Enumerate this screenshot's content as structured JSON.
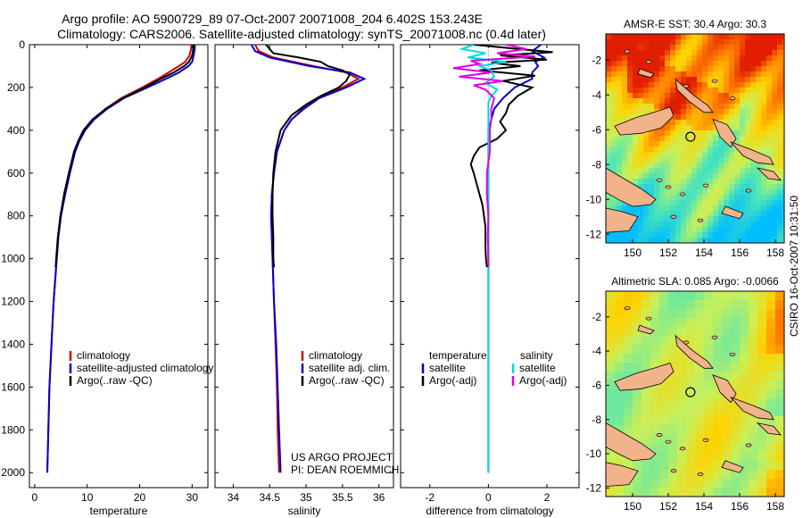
{
  "header": {
    "line1": "Argo profile: AO 5900729_89 07-Oct-2007 20071008_204 6.402S 153.243E",
    "line2": "Climatology: CARS2006. Satellite-adjusted climatology: synTS_20071008.nc (0.4d later)"
  },
  "credit": "CSIRO 16-Oct-2007 10:31:50",
  "chart_data": [
    {
      "type": "line",
      "xlabel": "temperature",
      "ylabel": "",
      "xlim": [
        -1,
        33
      ],
      "ylim": [
        2070,
        0
      ],
      "xticks": [
        0,
        10,
        20,
        30
      ],
      "yticks": [
        0,
        200,
        400,
        600,
        800,
        1000,
        1200,
        1400,
        1600,
        1800,
        2000
      ],
      "legend": [
        "climatology",
        "satellite-adjusted climatology",
        "Argo(..raw -QC)"
      ],
      "series": [
        {
          "name": "climatology",
          "color": "#d40000",
          "points": [
            [
              0,
              29.8
            ],
            [
              20,
              29.8
            ],
            [
              50,
              29.5
            ],
            [
              80,
              28.7
            ],
            [
              100,
              27.5
            ],
            [
              130,
              25.5
            ],
            [
              160,
              23.5
            ],
            [
              200,
              20.5
            ],
            [
              250,
              16.5
            ],
            [
              300,
              13.5
            ],
            [
              350,
              11.2
            ],
            [
              400,
              9.6
            ],
            [
              450,
              8.5
            ],
            [
              500,
              7.7
            ],
            [
              600,
              6.7
            ],
            [
              700,
              5.8
            ],
            [
              800,
              5.0
            ],
            [
              900,
              4.5
            ],
            [
              1000,
              4.2
            ],
            [
              1200,
              3.6
            ],
            [
              1400,
              3.2
            ],
            [
              1600,
              2.8
            ],
            [
              1800,
              2.6
            ],
            [
              2000,
              2.4
            ]
          ]
        },
        {
          "name": "satellite-adjusted climatology",
          "color": "#0000d0",
          "points": [
            [
              0,
              30.5
            ],
            [
              20,
              30.5
            ],
            [
              50,
              30.3
            ],
            [
              80,
              30.0
            ],
            [
              100,
              29.3
            ],
            [
              130,
              27.5
            ],
            [
              160,
              25.0
            ],
            [
              200,
              21.5
            ],
            [
              250,
              17.0
            ],
            [
              300,
              13.8
            ],
            [
              350,
              11.3
            ],
            [
              400,
              9.6
            ],
            [
              450,
              8.5
            ],
            [
              500,
              7.7
            ],
            [
              600,
              6.7
            ],
            [
              700,
              5.8
            ],
            [
              800,
              5.0
            ],
            [
              900,
              4.5
            ],
            [
              1000,
              4.2
            ],
            [
              1200,
              3.6
            ],
            [
              1400,
              3.2
            ],
            [
              1600,
              2.8
            ],
            [
              1800,
              2.6
            ],
            [
              2000,
              2.4
            ]
          ]
        },
        {
          "name": "Argo(..raw -QC)",
          "color": "#000000",
          "points": [
            [
              0,
              30.3
            ],
            [
              20,
              30.2
            ],
            [
              50,
              30.0
            ],
            [
              80,
              29.4
            ],
            [
              100,
              28.5
            ],
            [
              130,
              26.5
            ],
            [
              160,
              24.0
            ],
            [
              200,
              21.0
            ],
            [
              250,
              16.8
            ],
            [
              300,
              13.5
            ],
            [
              350,
              11.0
            ],
            [
              400,
              9.3
            ],
            [
              450,
              8.3
            ],
            [
              500,
              7.5
            ],
            [
              600,
              6.5
            ],
            [
              700,
              5.6
            ],
            [
              800,
              4.9
            ],
            [
              900,
              4.4
            ],
            [
              1000,
              4.1
            ],
            [
              1040,
              4.0
            ]
          ]
        }
      ]
    },
    {
      "type": "line",
      "xlabel": "salinity",
      "xlim": [
        33.75,
        36.2
      ],
      "ylim": [
        2070,
        0
      ],
      "xticks": [
        34,
        34.5,
        35,
        35.5,
        36
      ],
      "yticks": [
        0,
        200,
        400,
        600,
        800,
        1000,
        1200,
        1400,
        1600,
        1800,
        2000
      ],
      "legend": [
        "climatology",
        "satellite adj. clim.",
        "Argo(..raw -QC)"
      ],
      "series": [
        {
          "name": "climatology",
          "color": "#d40000",
          "points": [
            [
              0,
              34.3
            ],
            [
              30,
              34.35
            ],
            [
              60,
              34.55
            ],
            [
              100,
              35.1
            ],
            [
              130,
              35.55
            ],
            [
              160,
              35.72
            ],
            [
              200,
              35.5
            ],
            [
              250,
              35.15
            ],
            [
              300,
              34.95
            ],
            [
              350,
              34.8
            ],
            [
              400,
              34.7
            ],
            [
              500,
              34.6
            ],
            [
              600,
              34.56
            ],
            [
              700,
              34.53
            ],
            [
              800,
              34.52
            ],
            [
              1000,
              34.54
            ],
            [
              1200,
              34.56
            ],
            [
              1400,
              34.58
            ],
            [
              1600,
              34.6
            ],
            [
              1800,
              34.61
            ],
            [
              2000,
              34.63
            ]
          ]
        },
        {
          "name": "satellite adj. clim.",
          "color": "#0000d0",
          "points": [
            [
              0,
              34.25
            ],
            [
              30,
              34.3
            ],
            [
              60,
              34.5
            ],
            [
              100,
              35.05
            ],
            [
              130,
              35.6
            ],
            [
              160,
              35.8
            ],
            [
              200,
              35.55
            ],
            [
              250,
              35.18
            ],
            [
              300,
              34.97
            ],
            [
              350,
              34.8
            ],
            [
              400,
              34.7
            ],
            [
              500,
              34.6
            ],
            [
              600,
              34.56
            ],
            [
              700,
              34.53
            ],
            [
              800,
              34.52
            ],
            [
              1000,
              34.54
            ],
            [
              1200,
              34.56
            ],
            [
              1400,
              34.59
            ],
            [
              1600,
              34.61
            ],
            [
              1800,
              34.63
            ],
            [
              2000,
              34.65
            ]
          ]
        },
        {
          "name": "Argo(..raw -QC)",
          "color": "#000000",
          "points": [
            [
              0,
              34.45
            ],
            [
              20,
              34.5
            ],
            [
              40,
              34.55
            ],
            [
              60,
              34.9
            ],
            [
              80,
              35.2
            ],
            [
              100,
              35.3
            ],
            [
              120,
              35.5
            ],
            [
              140,
              35.6
            ],
            [
              170,
              35.55
            ],
            [
              200,
              35.45
            ],
            [
              240,
              35.2
            ],
            [
              280,
              35.0
            ],
            [
              330,
              34.8
            ],
            [
              400,
              34.65
            ],
            [
              500,
              34.58
            ],
            [
              600,
              34.55
            ],
            [
              700,
              34.54
            ],
            [
              800,
              34.54
            ],
            [
              900,
              34.55
            ],
            [
              1000,
              34.55
            ],
            [
              1040,
              34.56
            ]
          ]
        }
      ]
    },
    {
      "type": "line",
      "xlabel": "difference from climatology",
      "xlim": [
        -3,
        3.1
      ],
      "ylim": [
        2070,
        0
      ],
      "xticks": [
        -2,
        0,
        2
      ],
      "yticks": [
        0,
        200,
        400,
        600,
        800,
        1000,
        1200,
        1400,
        1600,
        1800,
        2000
      ],
      "legend_left_title": "temperature",
      "legend_right_title": "salinity",
      "legend": [
        "satellite",
        "Argo(-adj)",
        "satellite",
        "Argo(-adj)"
      ],
      "series": [
        {
          "name": "temperature satellite",
          "color": "#0000d0",
          "points": [
            [
              0,
              1.8
            ],
            [
              30,
              1.5
            ],
            [
              60,
              1.9
            ],
            [
              80,
              1.6
            ],
            [
              100,
              1.7
            ],
            [
              130,
              1.5
            ],
            [
              160,
              1.5
            ],
            [
              200,
              0.9
            ],
            [
              250,
              0.5
            ],
            [
              300,
              0.2
            ],
            [
              350,
              0.1
            ],
            [
              400,
              0
            ],
            [
              2000,
              0
            ]
          ]
        },
        {
          "name": "temperature Argo(-adj)",
          "color": "#000000",
          "points": [
            [
              0,
              -0.5
            ],
            [
              20,
              1.0
            ],
            [
              35,
              2.2
            ],
            [
              50,
              0.4
            ],
            [
              70,
              2.0
            ],
            [
              85,
              0.1
            ],
            [
              100,
              1.1
            ],
            [
              120,
              -0.3
            ],
            [
              145,
              1.6
            ],
            [
              170,
              0.5
            ],
            [
              200,
              1.5
            ],
            [
              240,
              1.0
            ],
            [
              280,
              0.7
            ],
            [
              320,
              0.6
            ],
            [
              360,
              0.4
            ],
            [
              400,
              0.6
            ],
            [
              440,
              0.3
            ],
            [
              480,
              -0.3
            ],
            [
              520,
              -0.5
            ],
            [
              560,
              -0.6
            ],
            [
              600,
              -0.5
            ],
            [
              650,
              -0.4
            ],
            [
              700,
              -0.3
            ],
            [
              750,
              -0.2
            ],
            [
              800,
              -0.15
            ],
            [
              850,
              -0.1
            ],
            [
              900,
              -0.1
            ],
            [
              950,
              -0.1
            ],
            [
              1000,
              -0.08
            ],
            [
              1040,
              -0.05
            ]
          ]
        },
        {
          "name": "salinity satellite",
          "color": "#00d8e8",
          "points": [
            [
              0,
              -0.5
            ],
            [
              20,
              -0.9
            ],
            [
              40,
              -0.1
            ],
            [
              60,
              -0.7
            ],
            [
              80,
              0.6
            ],
            [
              100,
              -0.3
            ],
            [
              120,
              0.1
            ],
            [
              150,
              0.2
            ],
            [
              180,
              -0.1
            ],
            [
              210,
              0.3
            ],
            [
              240,
              0.1
            ],
            [
              270,
              0.0
            ],
            [
              300,
              0
            ],
            [
              2000,
              0
            ]
          ]
        },
        {
          "name": "salinity Argo(-adj)",
          "color": "#e000e0",
          "points": [
            [
              0,
              0.6
            ],
            [
              20,
              1.3
            ],
            [
              40,
              0.3
            ],
            [
              55,
              1.6
            ],
            [
              75,
              -0.6
            ],
            [
              90,
              -0.3
            ],
            [
              110,
              -1.2
            ],
            [
              130,
              0.1
            ],
            [
              150,
              -1.0
            ],
            [
              170,
              0.5
            ],
            [
              190,
              -0.5
            ],
            [
              210,
              -0.1
            ],
            [
              250,
              0.2
            ],
            [
              300,
              0.1
            ],
            [
              350,
              0.1
            ],
            [
              400,
              0.05
            ],
            [
              450,
              0.05
            ],
            [
              500,
              0.05
            ],
            [
              550,
              0.0
            ],
            [
              600,
              -0.05
            ],
            [
              700,
              -0.05
            ],
            [
              800,
              0.0
            ],
            [
              900,
              -0.02
            ],
            [
              1000,
              0.0
            ],
            [
              1040,
              0.0
            ]
          ]
        }
      ]
    },
    {
      "type": "heatmap",
      "title": "AMSR-E SST: 30.4 Argo: 30.3",
      "xlim": [
        148.5,
        158.5
      ],
      "ylim": [
        -12.5,
        -0.5
      ],
      "xticks": [
        150,
        152,
        154,
        156,
        158
      ],
      "yticks": [
        -2,
        -4,
        -6,
        -8,
        -10,
        -12
      ],
      "marker": [
        153.243,
        -6.402
      ]
    },
    {
      "type": "heatmap",
      "title": "Altimetric SLA: 0.085 Argo: -0.0066",
      "xlim": [
        148.5,
        158.5
      ],
      "ylim": [
        -12.5,
        -0.5
      ],
      "xticks": [
        150,
        152,
        154,
        156,
        158
      ],
      "yticks": [
        -2,
        -4,
        -6,
        -8,
        -10,
        -12
      ],
      "marker": [
        153.243,
        -6.402
      ]
    }
  ],
  "annotation": {
    "line1": "US ARGO PROJECT",
    "line2": "PI: DEAN ROEMMICH"
  },
  "colors": {
    "climatology": "#d40000",
    "satellite": "#0000d0",
    "argo": "#000000",
    "sal_satellite": "#00d8e8",
    "sal_argo": "#e000e0",
    "land": "#f3b38a"
  }
}
